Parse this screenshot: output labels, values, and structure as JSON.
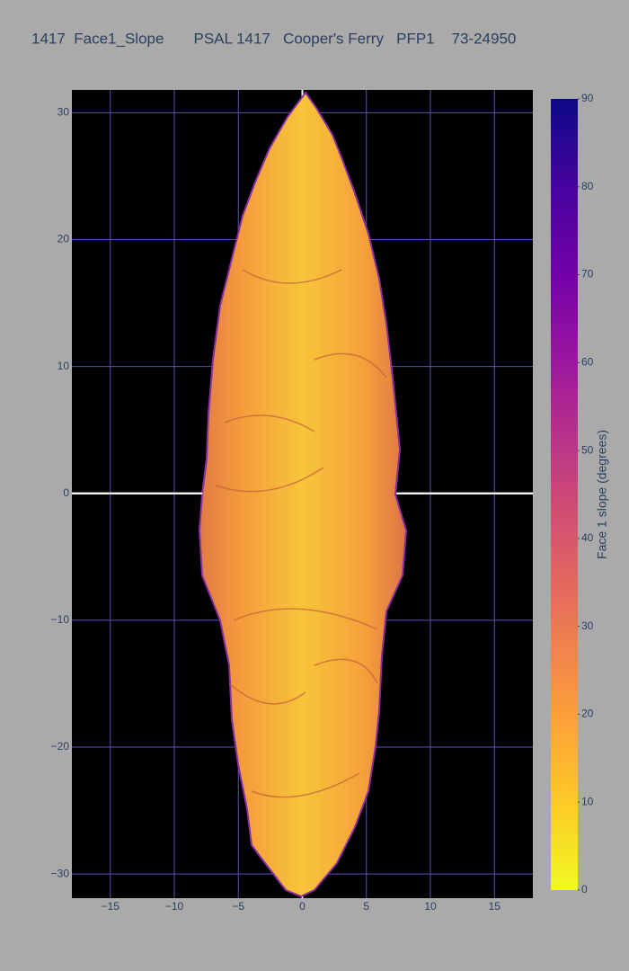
{
  "chart_data": {
    "type": "heatmap",
    "title": "1417  Face1_Slope       PSAL 1417   Cooper's Ferry   PFP1    73-24950",
    "xlim": [
      -18,
      18
    ],
    "ylim": [
      -31.9,
      31.8
    ],
    "xticks": [
      {
        "value": -15,
        "label": "−15"
      },
      {
        "value": -10,
        "label": "−10"
      },
      {
        "value": -5,
        "label": "−5"
      },
      0,
      5,
      10,
      15
    ],
    "yticks": [
      {
        "value": -30,
        "label": "−30"
      },
      {
        "value": -20,
        "label": "−20"
      },
      {
        "value": -10,
        "label": "−10"
      },
      0,
      10,
      20,
      30
    ],
    "grid": true,
    "grid_color": "#5b4fc4",
    "zeroline_color": "#ffffff",
    "background": "#000000",
    "colorbar": {
      "title": "Face 1 slope (degrees)",
      "range": [
        0,
        90
      ],
      "ticks": [
        0,
        10,
        20,
        30,
        40,
        50,
        60,
        70,
        80,
        90
      ],
      "colorscale": [
        "#f0f921",
        "#fdca26",
        "#fb9f3a",
        "#ed7953",
        "#d8576b",
        "#bd3786",
        "#9c179e",
        "#7201a8",
        "#46039f",
        "#0d0887"
      ]
    }
  }
}
